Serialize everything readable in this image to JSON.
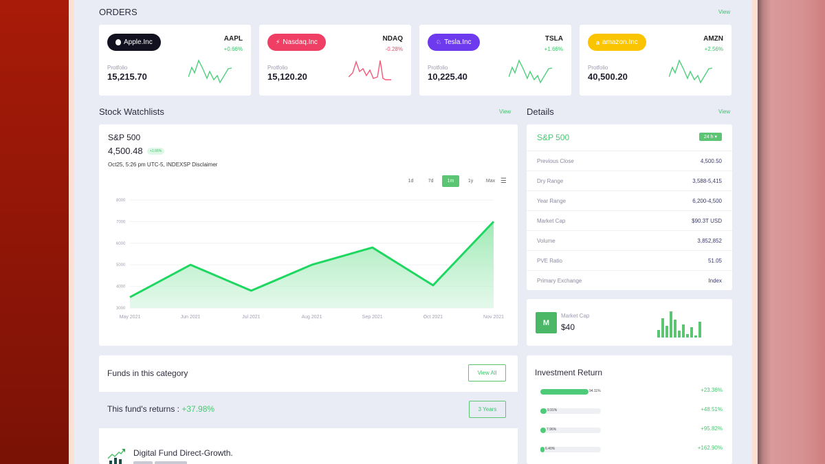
{
  "orders": {
    "title": "ORDERS",
    "view_label": "View",
    "cards": [
      {
        "name": "Apple.Inc",
        "icon": "apple-icon",
        "glyph": "",
        "ticker": "AAPL",
        "change": "+0.66%",
        "change_color": "#3cc46a",
        "pill_color": "#12111f",
        "portfolio_label": "Protfolio",
        "portfolio_value": "15,215.70",
        "spark_color": "#4fcf7c"
      },
      {
        "name": "Nasdaq.Inc",
        "icon": "bolt-icon",
        "glyph": "⚡",
        "ticker": "NDAQ",
        "change": "-0.28%",
        "change_color": "#ef4a6b",
        "pill_color": "#ef3f64",
        "portfolio_label": "Protfolio",
        "portfolio_value": "15,120.20",
        "spark_color": "#f05a78"
      },
      {
        "name": "Tesla.Inc",
        "icon": "tesla-icon",
        "glyph": "♘",
        "ticker": "TSLA",
        "change": "+1.66%",
        "change_color": "#3cc46a",
        "pill_color": "#6d3aee",
        "portfolio_label": "Protfolio",
        "portfolio_value": "10,225.40",
        "spark_color": "#4fcf7c"
      },
      {
        "name": "amazon.Inc",
        "icon": "amazon-icon",
        "glyph": "a",
        "ticker": "AMZN",
        "change": "+2.56%",
        "change_color": "#3cc46a",
        "pill_color": "#fbc400",
        "portfolio_label": "Protfolio",
        "portfolio_value": "40,500.20",
        "spark_color": "#4fcf7c"
      }
    ]
  },
  "watchlist": {
    "title": "Stock Watchlists",
    "view_label": "View",
    "index_name": "S&P 500",
    "price": "4,500.48",
    "badge": "+1.66%",
    "meta": "Oct25, 5:26 pm UTC-5, INDEXSP Disclaimer",
    "ranges": [
      "1d",
      "7d",
      "1m",
      "1y",
      "Max"
    ],
    "active_range": "1m"
  },
  "chart_data": {
    "type": "area",
    "title": "S&P 500",
    "categories": [
      "May 2021",
      "Jun 2021",
      "Jul 2021",
      "Aug 2021",
      "Sep 2021",
      "Oct 2021",
      "Nov 2021"
    ],
    "values": [
      3500,
      5000,
      3800,
      5000,
      5800,
      4050,
      7000
    ],
    "yticks": [
      3000,
      4000,
      5000,
      6000,
      7000,
      8000
    ],
    "ylim": [
      3000,
      8000
    ],
    "xlabel": "",
    "ylabel": "",
    "grid": true,
    "line_color": "#1ed760"
  },
  "details": {
    "title": "Details",
    "view_label": "View",
    "index_name": "S&P 500",
    "period_badge": "24 h ▾",
    "rows": [
      {
        "label": "Previous Close",
        "value": "4,500.50"
      },
      {
        "label": "Dry Range",
        "value": "3,588-5,415"
      },
      {
        "label": "Year Range",
        "value": "6,200-4,500"
      },
      {
        "label": "Market Cap",
        "value": "$90.3T USD"
      },
      {
        "label": "Volume",
        "value": "3,852,852"
      },
      {
        "label": "PVE Ratio",
        "value": "51.05"
      },
      {
        "label": "Primary Exchange",
        "value": "Index"
      }
    ]
  },
  "market_cap": {
    "badge_letter": "M",
    "label": "Market Cap",
    "value": "$40",
    "bars": [
      11,
      28,
      17,
      38,
      26,
      10,
      19,
      5,
      15,
      3,
      23
    ]
  },
  "funds": {
    "title": "Funds in this category",
    "view_all_label": "View All",
    "returns_label": "This fund's returns : ",
    "returns_value": "+37.98%",
    "period_label": "3 Years",
    "items": [
      {
        "name": "Digital Fund Direct-Growth."
      }
    ]
  },
  "investment": {
    "title": "Investment Return",
    "rows": [
      {
        "pct": "94.11%",
        "fill": 100,
        "ret": "+23.36%"
      },
      {
        "pct": "9.91%",
        "fill": 10,
        "ret": "+48.51%"
      },
      {
        "pct": "7.96%",
        "fill": 9,
        "ret": "+95.82%"
      },
      {
        "pct": "6.40%",
        "fill": 7,
        "ret": "+162.90%"
      }
    ]
  }
}
